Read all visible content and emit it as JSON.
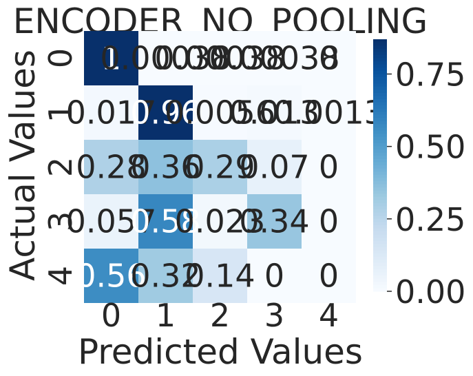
{
  "chart_data": {
    "type": "heatmap",
    "title": "ENCODER_NO_POOLING",
    "xlabel": "Predicted Values",
    "ylabel": "Actual Values",
    "x_categories": [
      "0",
      "1",
      "2",
      "3",
      "4"
    ],
    "y_categories": [
      "0",
      "1",
      "2",
      "3",
      "4"
    ],
    "values": [
      [
        1.0,
        0.00038,
        0.00038,
        0.00038,
        0.0
      ],
      [
        0.017,
        0.96,
        0.0056,
        0.013,
        0.0013
      ],
      [
        0.28,
        0.36,
        0.29,
        0.07,
        0.0
      ],
      [
        0.057,
        0.58,
        0.023,
        0.34,
        0.0
      ],
      [
        0.56,
        0.32,
        0.14,
        0.0,
        0.0
      ]
    ],
    "cell_labels": [
      [
        "1",
        "0.00038",
        "0.00038",
        "0.00038",
        "0"
      ],
      [
        "0.017",
        "0.96",
        "0.0056",
        "0.013",
        "0.0013"
      ],
      [
        "0.28",
        "0.36",
        "0.29",
        "0.07",
        "0"
      ],
      [
        "0.057",
        "0.58",
        "0.023",
        "0.34",
        "0"
      ],
      [
        "0.56",
        "0.32",
        "0.14",
        "0",
        "0"
      ]
    ],
    "colormap": "Blues",
    "color_range": [
      0,
      0.87
    ],
    "colorbar_ticks": [
      "0.00",
      "0.25",
      "0.50",
      "0.75"
    ],
    "colorbar_tick_values": [
      0,
      0.25,
      0.5,
      0.75
    ]
  }
}
